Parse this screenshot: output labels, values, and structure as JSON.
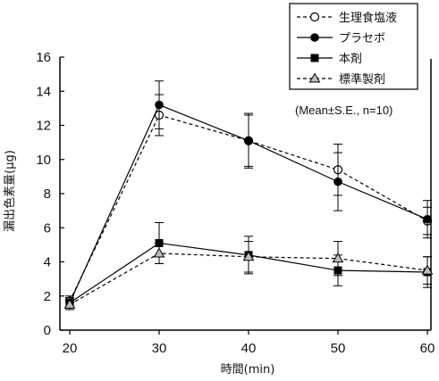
{
  "chart_data": {
    "type": "line",
    "title": "",
    "xlabel": "時間(min)",
    "ylabel": "漏出色素量(μg)",
    "x": [
      20,
      30,
      40,
      50,
      60
    ],
    "xlim": [
      20,
      60
    ],
    "ylim": [
      0,
      16
    ],
    "yticks": [
      0,
      2,
      4,
      6,
      8,
      10,
      12,
      14,
      16
    ],
    "xticks": [
      20,
      30,
      40,
      50,
      60
    ],
    "grid": false,
    "legend_position": "top-right",
    "annotation": "(Mean±S.E.,  n=10)",
    "series": [
      {
        "name": "生理食塩液",
        "marker": "circle-open",
        "line": "dashed",
        "values": [
          1.7,
          12.6,
          11.1,
          9.4,
          6.4
        ],
        "errors": [
          0.3,
          1.2,
          1.6,
          1.5,
          0.8
        ]
      },
      {
        "name": "プラセボ",
        "marker": "circle-filled",
        "line": "solid",
        "values": [
          1.6,
          13.2,
          11.1,
          8.7,
          6.5
        ],
        "errors": [
          0.3,
          1.4,
          1.5,
          1.7,
          1.1
        ]
      },
      {
        "name": "本剤",
        "marker": "square-filled",
        "line": "solid",
        "values": [
          1.6,
          5.1,
          4.4,
          3.5,
          3.4
        ],
        "errors": [
          0.3,
          1.2,
          1.1,
          0.9,
          0.9
        ]
      },
      {
        "name": "標準製剤",
        "marker": "triangle-gray",
        "line": "dashed",
        "values": [
          1.5,
          4.5,
          4.3,
          4.2,
          3.5
        ],
        "errors": [
          0.3,
          0.6,
          0.9,
          1.0,
          0.8
        ]
      }
    ]
  }
}
